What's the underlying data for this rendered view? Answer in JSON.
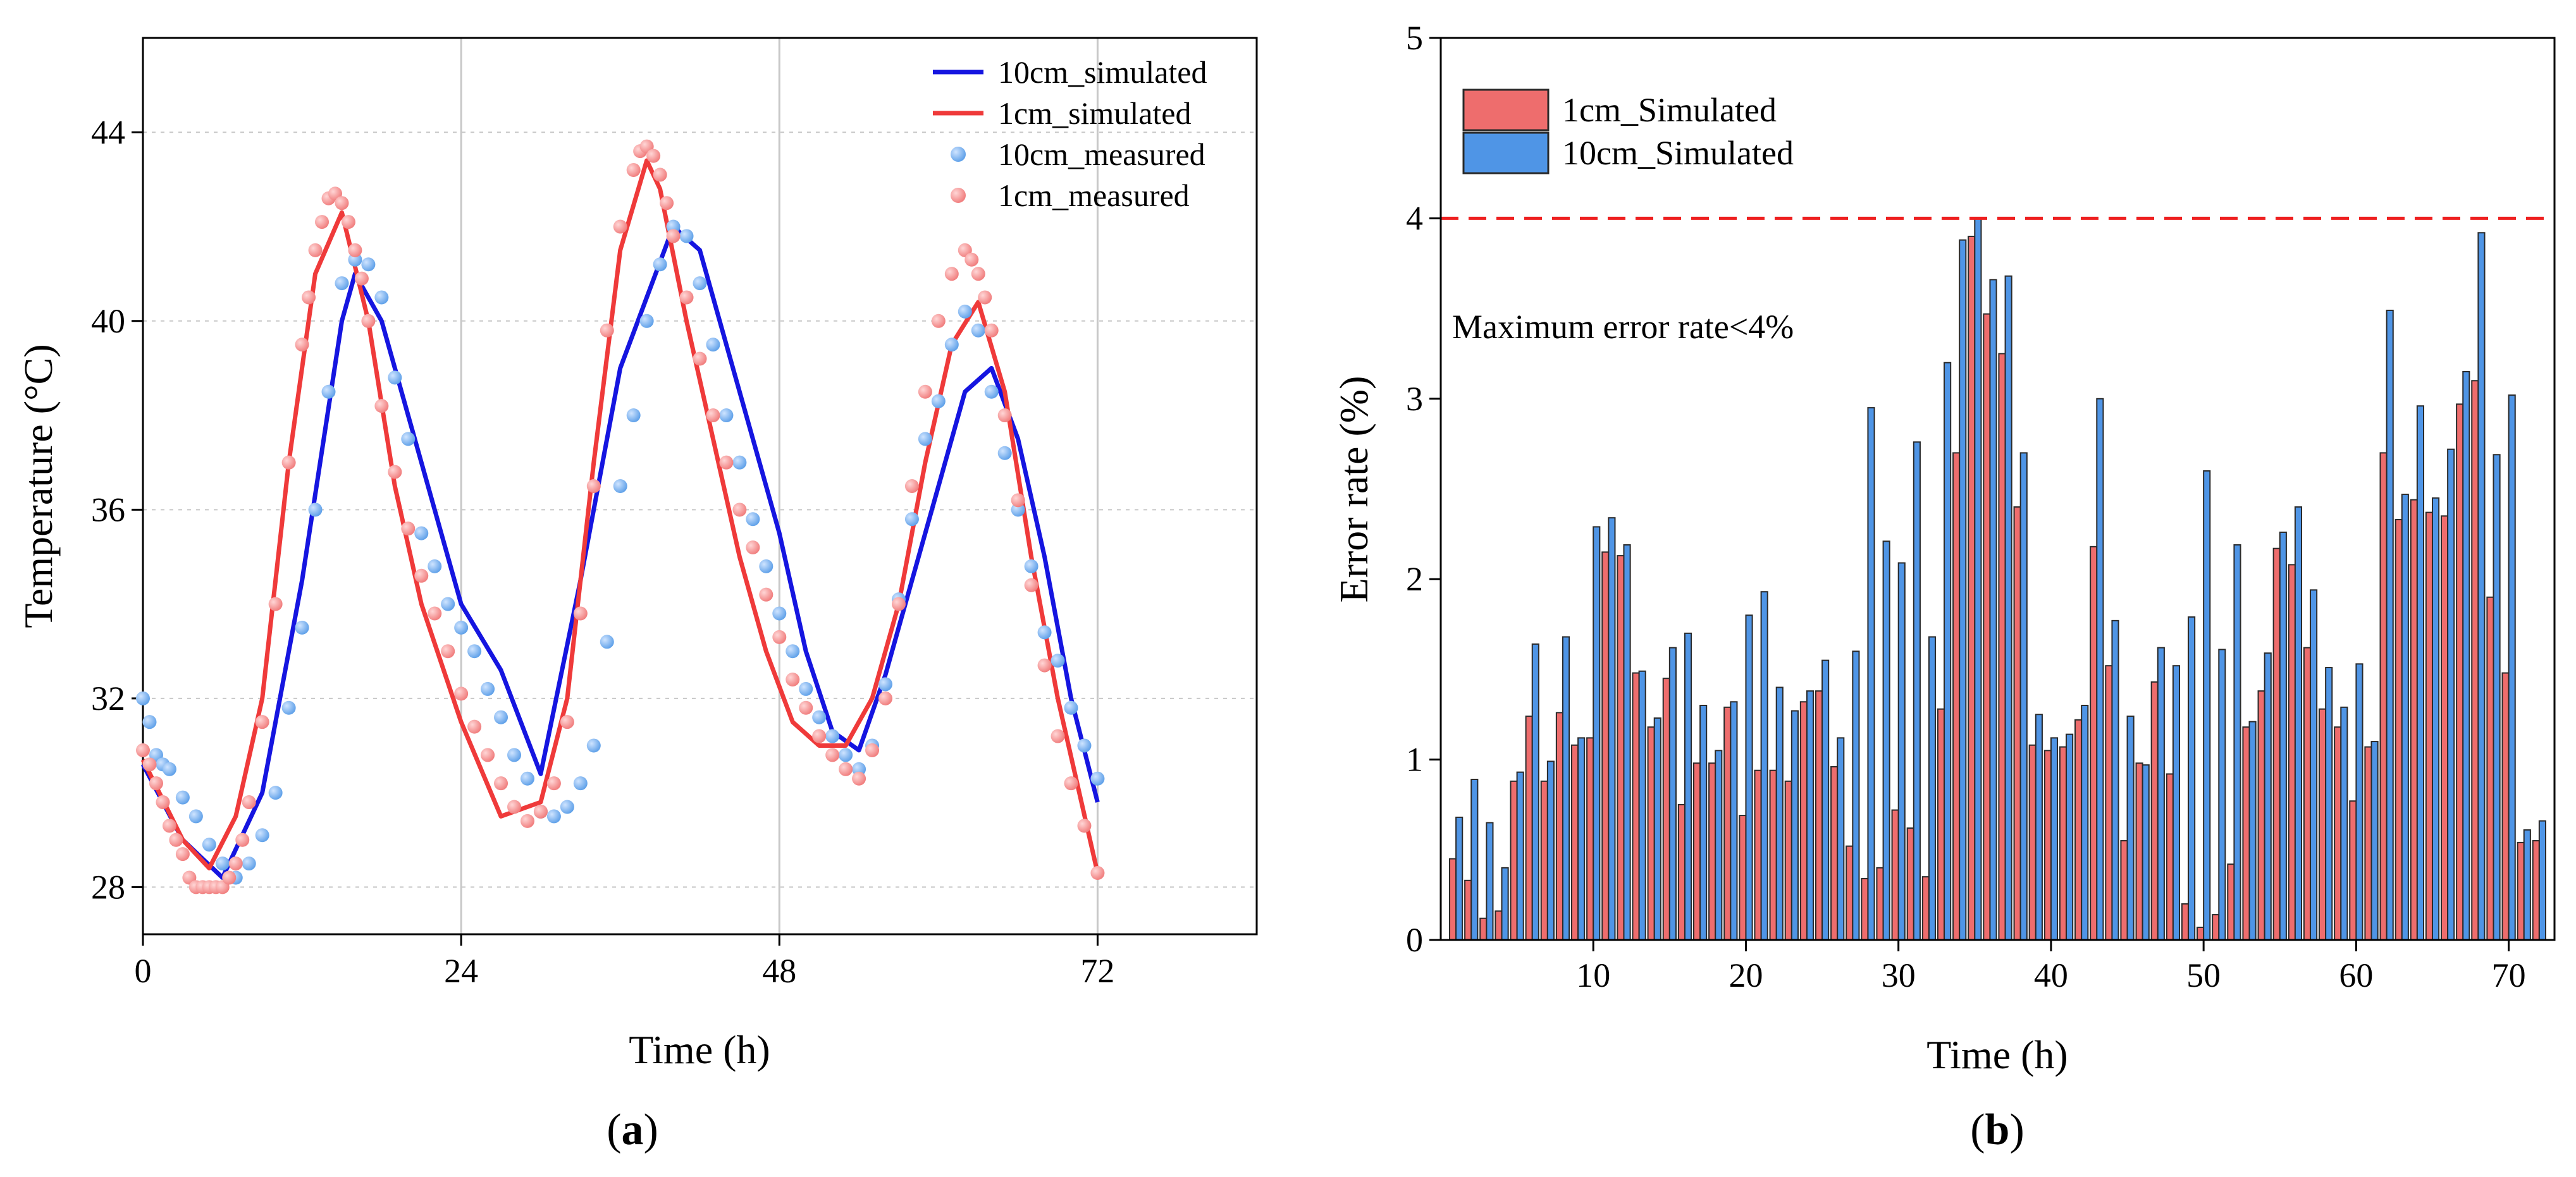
{
  "colors": {
    "blue_line": "#1515e0",
    "red_line": "#ef3a3a",
    "blue_marker": "#5b9ee8",
    "red_marker": "#f07a7a",
    "bar_red": "#ee6d6d",
    "bar_blue": "#4f95e6",
    "threshold": "#ee2020"
  },
  "panel_a": {
    "caption": "a",
    "chart_data": {
      "type": "line",
      "xlabel": "Time (h)",
      "ylabel": "Temperature (°C)",
      "xlim": [
        0,
        84
      ],
      "ylim": [
        27,
        46
      ],
      "xticks": [
        0,
        24,
        48,
        72
      ],
      "yticks": [
        28,
        32,
        36,
        40,
        44
      ],
      "grid": true,
      "legend_position": "top-right",
      "series": [
        {
          "name": "10cm_simulated",
          "kind": "line",
          "x": [
            0,
            3,
            6,
            9,
            12,
            15,
            16,
            18,
            21,
            24,
            27,
            30,
            33,
            36,
            38,
            40,
            42,
            44,
            46,
            48,
            50,
            52,
            54,
            56,
            58,
            60,
            62,
            64,
            66,
            68,
            70,
            72
          ],
          "y": [
            30.6,
            29.0,
            28.2,
            30.0,
            34.5,
            40.0,
            41.0,
            40.0,
            37.0,
            34.0,
            32.6,
            30.4,
            34.5,
            39.0,
            40.5,
            42.0,
            41.5,
            39.5,
            37.5,
            35.5,
            33.0,
            31.3,
            30.9,
            32.5,
            34.5,
            36.5,
            38.5,
            39.0,
            37.5,
            35.0,
            32.0,
            29.8
          ]
        },
        {
          "name": "1cm_simulated",
          "kind": "line",
          "x": [
            0,
            3,
            5,
            7,
            9,
            11,
            13,
            15,
            17,
            19,
            21,
            24,
            27,
            30,
            32,
            34,
            36,
            38,
            39,
            41,
            43,
            45,
            47,
            49,
            51,
            53,
            55,
            57,
            59,
            61,
            63,
            65,
            67,
            69,
            72
          ],
          "y": [
            30.7,
            29.0,
            28.4,
            29.5,
            32.0,
            37.0,
            41.0,
            42.3,
            40.0,
            36.5,
            34.0,
            31.5,
            29.5,
            29.8,
            32.0,
            37.0,
            41.5,
            43.4,
            42.8,
            40.0,
            37.5,
            35.0,
            33.0,
            31.5,
            31.0,
            31.0,
            32.0,
            34.0,
            37.0,
            39.5,
            40.4,
            38.5,
            35.0,
            32.0,
            28.3
          ]
        },
        {
          "name": "10cm_measured",
          "kind": "scatter",
          "x": [
            0,
            0.5,
            1,
            1.5,
            2,
            3,
            4,
            5,
            6,
            7,
            8,
            9,
            10,
            11,
            12,
            13,
            14,
            15,
            16,
            17,
            18,
            19,
            20,
            21,
            22,
            23,
            24,
            25,
            26,
            27,
            28,
            29,
            30,
            31,
            32,
            33,
            34,
            35,
            36,
            37,
            38,
            39,
            40,
            41,
            42,
            43,
            44,
            45,
            46,
            47,
            48,
            49,
            50,
            51,
            52,
            53,
            54,
            55,
            56,
            57,
            58,
            59,
            60,
            61,
            62,
            63,
            64,
            65,
            66,
            67,
            68,
            69,
            70,
            71,
            72
          ],
          "y": [
            32.0,
            31.5,
            30.8,
            30.6,
            30.5,
            29.9,
            29.5,
            28.9,
            28.5,
            28.2,
            28.5,
            29.1,
            30.0,
            31.8,
            33.5,
            36.0,
            38.5,
            40.8,
            41.3,
            41.2,
            40.5,
            38.8,
            37.5,
            35.5,
            34.8,
            34.0,
            33.5,
            33.0,
            32.2,
            31.6,
            30.8,
            30.3,
            29.6,
            29.5,
            29.7,
            30.2,
            31.0,
            33.2,
            36.5,
            38.0,
            40.0,
            41.2,
            42.0,
            41.8,
            40.8,
            39.5,
            38.0,
            37.0,
            35.8,
            34.8,
            33.8,
            33.0,
            32.2,
            31.6,
            31.2,
            30.8,
            30.5,
            31.0,
            32.3,
            34.1,
            35.8,
            37.5,
            38.3,
            39.5,
            40.2,
            39.8,
            38.5,
            37.2,
            36.0,
            34.8,
            33.4,
            32.8,
            31.8,
            31.0,
            30.3
          ]
        },
        {
          "name": "1cm_measured",
          "kind": "scatter",
          "x": [
            0,
            0.5,
            1,
            1.5,
            2,
            2.5,
            3,
            3.5,
            4,
            4.5,
            5,
            5.5,
            6,
            6.5,
            7,
            7.5,
            8,
            9,
            10,
            11,
            12,
            12.5,
            13,
            13.5,
            14,
            14.5,
            15,
            15.5,
            16,
            16.5,
            17,
            18,
            19,
            20,
            21,
            22,
            23,
            24,
            25,
            26,
            27,
            28,
            29,
            30,
            31,
            32,
            33,
            34,
            35,
            36,
            37,
            37.5,
            38,
            38.5,
            39,
            39.5,
            40,
            41,
            42,
            43,
            44,
            45,
            46,
            47,
            48,
            49,
            50,
            51,
            52,
            53,
            54,
            55,
            56,
            57,
            58,
            59,
            60,
            61,
            62,
            62.5,
            63,
            63.5,
            64,
            65,
            66,
            67,
            68,
            69,
            70,
            71,
            72
          ],
          "y": [
            30.9,
            30.6,
            30.2,
            29.8,
            29.3,
            29.0,
            28.7,
            28.2,
            28.0,
            28.0,
            28.0,
            28.0,
            28.0,
            28.2,
            28.5,
            29.0,
            29.8,
            31.5,
            34.0,
            37.0,
            39.5,
            40.5,
            41.5,
            42.1,
            42.6,
            42.7,
            42.5,
            42.1,
            41.5,
            40.9,
            40.0,
            38.2,
            36.8,
            35.6,
            34.6,
            33.8,
            33.0,
            32.1,
            31.4,
            30.8,
            30.2,
            29.7,
            29.4,
            29.6,
            30.2,
            31.5,
            33.8,
            36.5,
            39.8,
            42.0,
            43.2,
            43.6,
            43.7,
            43.5,
            43.1,
            42.5,
            41.8,
            40.5,
            39.2,
            38.0,
            37.0,
            36.0,
            35.2,
            34.2,
            33.3,
            32.4,
            31.8,
            31.2,
            30.8,
            30.5,
            30.3,
            30.9,
            32.0,
            34.0,
            36.5,
            38.5,
            40.0,
            41.0,
            41.5,
            41.3,
            41.0,
            40.5,
            39.8,
            38.0,
            36.2,
            34.4,
            32.7,
            31.2,
            30.2,
            29.3,
            28.3
          ]
        }
      ]
    }
  },
  "panel_b": {
    "caption": "b",
    "annotation": "Maximum error rate<4%",
    "threshold": 4,
    "chart_data": {
      "type": "bar",
      "xlabel": "Time (h)",
      "ylabel": "Error rate (%)",
      "xlim": [
        0,
        73
      ],
      "ylim": [
        0,
        5
      ],
      "xticks": [
        10,
        20,
        30,
        40,
        50,
        60,
        70
      ],
      "yticks": [
        0,
        1,
        2,
        3,
        4,
        5
      ],
      "legend_position": "top-left",
      "x": [
        1,
        2,
        3,
        4,
        5,
        6,
        7,
        8,
        9,
        10,
        11,
        12,
        13,
        14,
        15,
        16,
        17,
        18,
        19,
        20,
        21,
        22,
        23,
        24,
        25,
        26,
        27,
        28,
        29,
        30,
        31,
        32,
        33,
        34,
        35,
        36,
        37,
        38,
        39,
        40,
        41,
        42,
        43,
        44,
        45,
        46,
        47,
        48,
        49,
        50,
        51,
        52,
        53,
        54,
        55,
        56,
        57,
        58,
        59,
        60,
        61,
        62,
        63,
        64,
        65,
        66,
        67,
        68,
        69,
        70,
        71,
        72
      ],
      "series": [
        {
          "name": "1cm_Simulated",
          "values": [
            0.45,
            0.33,
            0.12,
            0.16,
            0.88,
            1.24,
            0.88,
            1.26,
            1.08,
            1.12,
            2.15,
            2.13,
            1.48,
            1.18,
            1.45,
            0.75,
            0.98,
            0.98,
            1.29,
            0.69,
            0.94,
            0.94,
            0.88,
            1.32,
            1.38,
            0.96,
            0.52,
            0.34,
            0.4,
            0.72,
            0.62,
            0.35,
            1.28,
            2.7,
            3.9,
            3.47,
            3.25,
            2.4,
            1.08,
            1.05,
            1.07,
            1.22,
            2.18,
            1.52,
            0.55,
            0.98,
            1.43,
            0.92,
            0.2,
            0.07,
            0.14,
            0.42,
            1.18,
            1.38,
            2.17,
            2.08,
            1.62,
            1.28,
            1.18,
            0.77,
            1.07,
            2.7,
            2.33,
            2.44,
            2.37,
            2.35,
            2.97,
            3.1,
            1.9,
            1.48,
            0.54,
            0.55
          ]
        },
        {
          "name": "10cm_Simulated",
          "values": [
            0.68,
            0.89,
            0.65,
            0.4,
            0.93,
            1.64,
            0.99,
            1.68,
            1.12,
            2.29,
            2.34,
            2.19,
            1.49,
            1.23,
            1.62,
            1.7,
            1.3,
            1.05,
            1.32,
            1.8,
            1.93,
            1.4,
            1.27,
            1.38,
            1.55,
            1.12,
            1.6,
            2.95,
            2.21,
            2.09,
            2.76,
            1.68,
            3.2,
            3.88,
            4.0,
            3.66,
            3.68,
            2.7,
            1.25,
            1.12,
            1.14,
            1.3,
            3.0,
            1.77,
            1.24,
            0.97,
            1.62,
            1.52,
            1.79,
            2.6,
            1.61,
            2.19,
            1.21,
            1.59,
            2.26,
            2.4,
            1.94,
            1.51,
            1.29,
            1.53,
            1.1,
            3.49,
            2.47,
            2.96,
            2.45,
            2.72,
            3.15,
            3.92,
            2.69,
            3.02,
            0.61,
            0.66
          ]
        }
      ]
    }
  }
}
